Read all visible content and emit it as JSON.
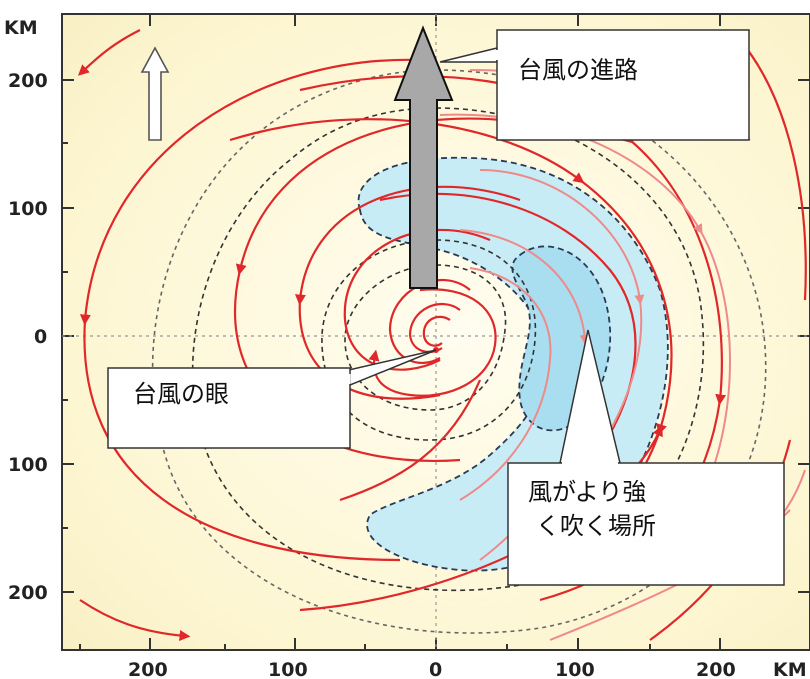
{
  "axis_unit_labels": {
    "top_left": "KM",
    "bottom_right": "KM"
  },
  "y_ticks": [
    {
      "value": "200"
    },
    {
      "value": "100"
    },
    {
      "value": "0"
    },
    {
      "value": "100"
    },
    {
      "value": "200"
    }
  ],
  "x_ticks": [
    {
      "value": "200"
    },
    {
      "value": "100"
    },
    {
      "value": "0"
    },
    {
      "value": "100"
    },
    {
      "value": "200"
    }
  ],
  "callouts": {
    "track": "台風の進路",
    "eye": "台風の眼",
    "strong_wind_line1": "風がより強",
    "strong_wind_line2": "く吹く場所"
  },
  "colors": {
    "background": "#fdf8d8",
    "streamline_main": "#e0282a",
    "streamline_light": "#ee8a8a",
    "strong_zone": "#c8ecf6",
    "strongest_zone": "#a8def0",
    "isoline": "#333333",
    "track_arrow": "#a8a8a8"
  }
}
